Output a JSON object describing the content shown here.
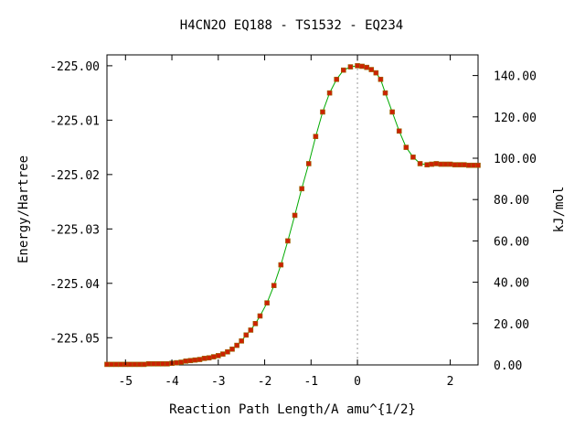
{
  "chart_data": {
    "type": "scatter",
    "title": "H4CN2O   EQ188 - TS1532 - EQ234",
    "xlabel": "Reaction Path Length/A amu^{1/2}",
    "ylabel_left": "Energy/Hartree",
    "ylabel_right": "kJ/mol",
    "xlim": [
      -5.4,
      2.6
    ],
    "ylim_left": [
      -225.055,
      -224.998
    ],
    "ylim_right": [
      0,
      150
    ],
    "x_ticks": [
      -5,
      -4,
      -3,
      -2,
      -1,
      0,
      2
    ],
    "x_tick_labels": [
      "-5",
      "-4",
      "-3",
      "-2",
      "-1",
      "0",
      "2"
    ],
    "y_left_ticks": [
      -225.05,
      -225.04,
      -225.03,
      -225.02,
      -225.01,
      -225.0
    ],
    "y_left_tick_labels": [
      "-225.05",
      "-225.04",
      "-225.03",
      "-225.02",
      "-225.01",
      "-225.00"
    ],
    "y_right_ticks": [
      0,
      20,
      40,
      60,
      80,
      100,
      120,
      140
    ],
    "y_right_tick_labels": [
      "0.00",
      "20.00",
      "40.00",
      "60.00",
      "80.00",
      "100.00",
      "120.00",
      "140.00"
    ],
    "ts_marker_x": 0,
    "grid": false,
    "colors": {
      "line": "#00aa00",
      "marker": "#cc2200",
      "marker_edge": "#996600",
      "ts_line": "#999999"
    },
    "series": [
      {
        "x": [
          -5.4,
          -5.3,
          -5.2,
          -5.1,
          -5.0,
          -4.9,
          -4.8,
          -4.7,
          -4.6,
          -4.5,
          -4.4,
          -4.3,
          -4.2,
          -4.1,
          -4.0,
          -3.9,
          -3.8,
          -3.7,
          -3.6,
          -3.5,
          -3.4,
          -3.3,
          -3.2,
          -3.1,
          -3.0,
          -2.9,
          -2.8,
          -2.7,
          -2.6,
          -2.5,
          -2.4,
          -2.3,
          -2.2,
          -2.1,
          -1.95,
          -1.8,
          -1.65,
          -1.5,
          -1.35,
          -1.2,
          -1.05,
          -0.9,
          -0.75,
          -0.6,
          -0.45,
          -0.3,
          -0.15,
          0.0,
          0.1,
          0.2,
          0.3,
          0.4,
          0.5,
          0.6,
          0.75,
          0.9,
          1.05,
          1.2,
          1.35,
          1.5,
          1.6,
          1.7,
          1.8,
          1.9,
          2.0,
          2.1,
          2.2,
          2.3,
          2.4,
          2.5,
          2.6
        ],
        "y": [
          -225.0549,
          -225.0549,
          -225.0549,
          -225.0549,
          -225.0549,
          -225.0549,
          -225.0549,
          -225.0549,
          -225.0549,
          -225.0548,
          -225.0548,
          -225.0548,
          -225.0548,
          -225.0548,
          -225.0547,
          -225.0546,
          -225.0545,
          -225.0543,
          -225.0542,
          -225.0541,
          -225.054,
          -225.0538,
          -225.0537,
          -225.0535,
          -225.0533,
          -225.053,
          -225.0526,
          -225.0521,
          -225.0514,
          -225.0506,
          -225.0495,
          -225.0486,
          -225.0474,
          -225.046,
          -225.0436,
          -225.0404,
          -225.0366,
          -225.0322,
          -225.0275,
          -225.0226,
          -225.018,
          -225.013,
          -225.0085,
          -225.005,
          -225.0025,
          -225.0008,
          -225.0002,
          -225.0,
          -225.0001,
          -225.0003,
          -225.0007,
          -225.0013,
          -225.0025,
          -225.005,
          -225.0085,
          -225.012,
          -225.015,
          -225.0168,
          -225.018,
          -225.0182,
          -225.0181,
          -225.018,
          -225.0181,
          -225.0181,
          -225.0181,
          -225.0182,
          -225.0182,
          -225.0182,
          -225.0183,
          -225.0183,
          -225.0183
        ]
      }
    ]
  }
}
